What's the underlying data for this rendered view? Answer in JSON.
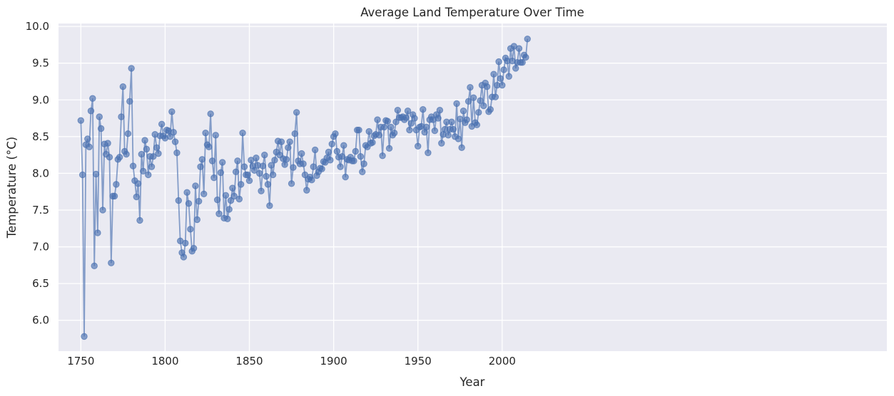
{
  "chart_data": {
    "type": "line",
    "title": "Average Land Temperature Over Time",
    "xlabel": "Year",
    "ylabel": "Temperature (°C)",
    "xlim": [
      1736.75,
      2228.25
    ],
    "ylim": [
      5.58,
      10.04
    ],
    "xticks": [
      1750,
      1800,
      1850,
      1900,
      1950,
      2000
    ],
    "yticks": [
      6.0,
      6.5,
      7.0,
      7.5,
      8.0,
      8.5,
      9.0,
      9.5,
      10.0
    ],
    "grid": true,
    "markers": true,
    "colors": {
      "series": "#4c72b0",
      "background": "#eaeaf2",
      "grid": "#ffffff"
    },
    "series": [
      {
        "x_start": 1750,
        "x_step": 1,
        "values": [
          8.72,
          7.98,
          5.78,
          8.39,
          8.47,
          8.36,
          8.85,
          9.02,
          6.74,
          7.99,
          7.19,
          8.77,
          8.61,
          7.5,
          8.4,
          8.26,
          8.41,
          8.22,
          6.78,
          7.69,
          7.69,
          7.85,
          8.19,
          8.22,
          8.77,
          9.18,
          8.3,
          8.26,
          8.54,
          8.98,
          9.43,
          8.1,
          7.9,
          7.68,
          7.86,
          7.36,
          8.26,
          8.03,
          8.45,
          8.33,
          7.98,
          8.23,
          8.09,
          8.23,
          8.53,
          8.35,
          8.27,
          8.51,
          8.67,
          8.51,
          8.48,
          8.59,
          8.58,
          8.5,
          8.84,
          8.56,
          8.43,
          8.28,
          7.63,
          7.08,
          6.92,
          6.86,
          7.05,
          7.74,
          7.59,
          7.24,
          6.94,
          6.98,
          7.83,
          7.37,
          7.62,
          8.09,
          8.19,
          7.72,
          8.55,
          8.39,
          8.36,
          8.81,
          8.17,
          7.94,
          8.52,
          7.64,
          7.45,
          8.01,
          8.15,
          7.39,
          7.7,
          7.38,
          7.51,
          7.63,
          7.8,
          7.69,
          8.02,
          8.17,
          7.65,
          7.85,
          8.55,
          8.09,
          7.98,
          7.98,
          7.9,
          8.18,
          8.1,
          8.04,
          8.21,
          8.11,
          8.0,
          7.76,
          8.1,
          8.25,
          7.96,
          7.85,
          7.56,
          8.11,
          7.98,
          8.18,
          8.29,
          8.44,
          8.25,
          8.43,
          8.2,
          8.12,
          8.19,
          8.35,
          8.43,
          7.86,
          8.08,
          8.54,
          8.83,
          8.17,
          8.13,
          8.27,
          8.13,
          7.98,
          7.77,
          7.92,
          7.95,
          7.91,
          8.09,
          8.32,
          7.97,
          8.02,
          8.07,
          8.06,
          8.16,
          8.15,
          8.21,
          8.29,
          8.18,
          8.4,
          8.5,
          8.54,
          8.3,
          8.22,
          8.09,
          8.23,
          8.38,
          7.95,
          8.19,
          8.18,
          8.22,
          8.17,
          8.17,
          8.3,
          8.59,
          8.59,
          8.23,
          8.02,
          8.13,
          8.38,
          8.36,
          8.57,
          8.41,
          8.42,
          8.51,
          8.53,
          8.73,
          8.52,
          8.63,
          8.24,
          8.63,
          8.72,
          8.71,
          8.34,
          8.63,
          8.52,
          8.55,
          8.7,
          8.86,
          8.76,
          8.76,
          8.77,
          8.73,
          8.76,
          8.85,
          8.59,
          8.68,
          8.8,
          8.75,
          8.59,
          8.37,
          8.63,
          8.64,
          8.87,
          8.56,
          8.63,
          8.28,
          8.73,
          8.77,
          8.73,
          8.58,
          8.8,
          8.75,
          8.86,
          8.41,
          8.53,
          8.6,
          8.7,
          8.52,
          8.6,
          8.7,
          8.6,
          8.5,
          8.95,
          8.47,
          8.74,
          8.35,
          8.85,
          8.69,
          8.73,
          8.98,
          9.17,
          8.64,
          9.03,
          8.69,
          8.66,
          8.83,
          8.99,
          9.2,
          8.92,
          9.23,
          9.18,
          8.84,
          8.87,
          9.04,
          9.35,
          9.04,
          9.2,
          9.52,
          9.29,
          9.2,
          9.41,
          9.57,
          9.53,
          9.32,
          9.7,
          9.53,
          9.73,
          9.43,
          9.51,
          9.7,
          9.51,
          9.51,
          9.61,
          9.58,
          9.83
        ]
      }
    ]
  }
}
